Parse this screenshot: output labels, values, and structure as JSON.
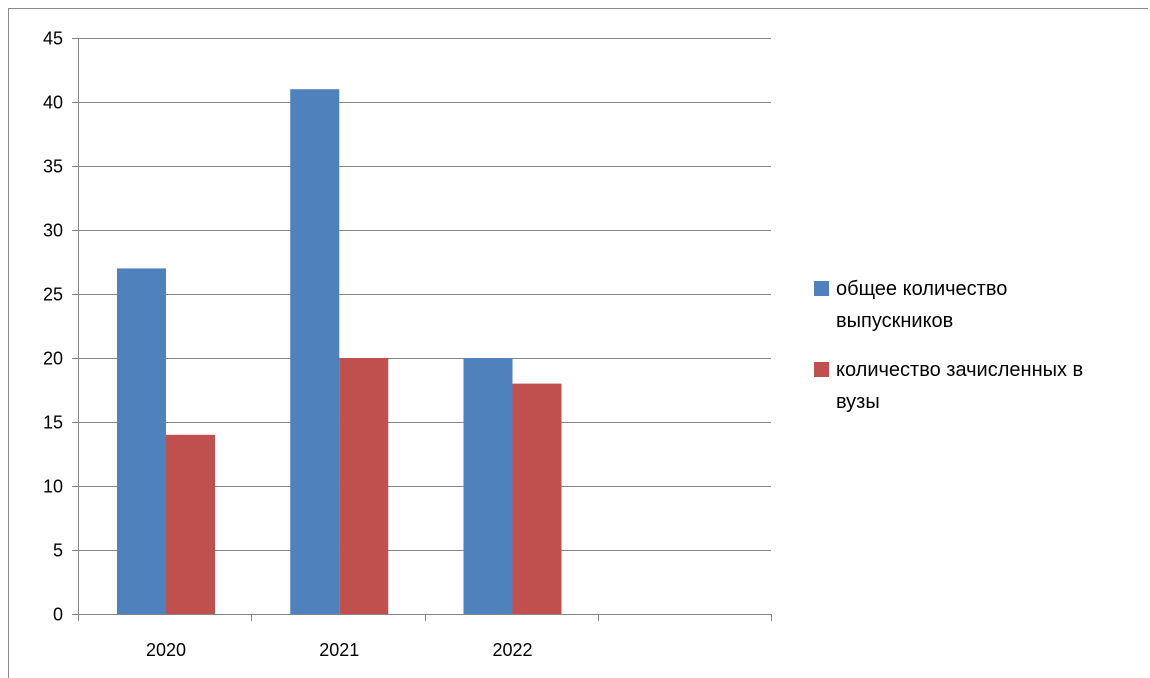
{
  "chart_data": {
    "type": "bar",
    "categories": [
      "2020",
      "2021",
      "2022",
      ""
    ],
    "series": [
      {
        "name": "общее количество выпускников",
        "values": [
          27,
          41,
          20,
          null
        ],
        "color": "#4F81BD"
      },
      {
        "name": "количество зачисленных в вузы",
        "values": [
          14,
          20,
          18,
          null
        ],
        "color": "#C0504D"
      }
    ],
    "series_legend_lines": [
      [
        "общее количество",
        "выпускников"
      ],
      [
        "количество зачисленных в",
        "вузы"
      ]
    ],
    "title": "",
    "xlabel": "",
    "ylabel": "",
    "ylim": [
      0,
      45
    ],
    "yticks": [
      0,
      5,
      10,
      15,
      20,
      25,
      30,
      35,
      40,
      45
    ],
    "grid": true,
    "legend_position": "right"
  }
}
